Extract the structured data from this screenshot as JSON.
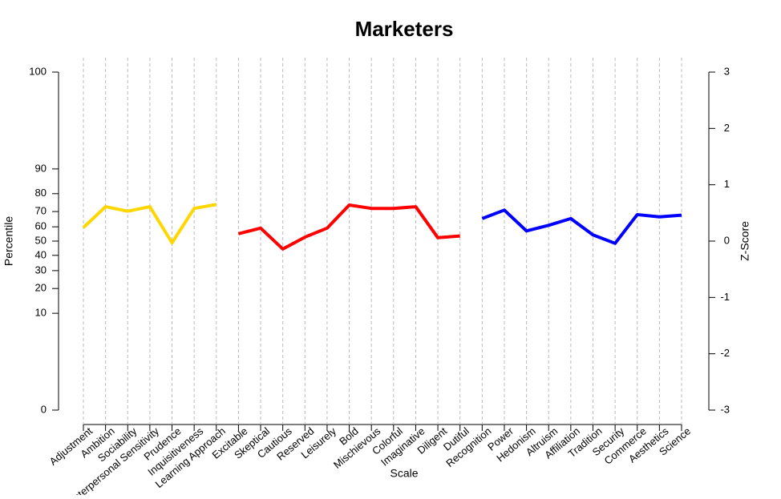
{
  "chart_data": {
    "type": "line",
    "title": "Marketers",
    "xlabel": "Scale",
    "ylabel": "Percentile",
    "y2label": "Z-Score",
    "categories": [
      "Adjustment",
      "Ambition",
      "Sociability",
      "Interpersonal Sensitivity",
      "Prudence",
      "Inquisitiveness",
      "Learning Approach",
      "Excitable",
      "Skeptical",
      "Cautious",
      "Reserved",
      "Leisurely",
      "Bold",
      "Mischievous",
      "Colorful",
      "Imaginative",
      "Diligent",
      "Dutiful",
      "Recognition",
      "Power",
      "Hedonism",
      "Altruism",
      "Affiliation",
      "Tradition",
      "Security",
      "Commerce",
      "Aesthetics",
      "Science"
    ],
    "series": [
      {
        "color": "#ffd700",
        "axis": "y2",
        "values": [
          0.24,
          0.61,
          0.53,
          0.61,
          -0.03,
          0.58,
          0.65,
          null,
          null,
          null,
          null,
          null,
          null,
          null,
          null,
          null,
          null,
          null,
          null,
          null,
          null,
          null,
          null,
          null,
          null,
          null,
          null,
          null
        ]
      },
      {
        "color": "#ff0000",
        "axis": "y2",
        "values": [
          null,
          null,
          null,
          null,
          null,
          null,
          null,
          0.13,
          0.23,
          -0.14,
          0.07,
          0.23,
          0.64,
          0.58,
          0.58,
          0.61,
          0.06,
          0.09,
          null,
          null,
          null,
          null,
          null,
          null,
          null,
          null,
          null,
          null
        ]
      },
      {
        "color": "#0000ff",
        "axis": "y2",
        "values": [
          null,
          null,
          null,
          null,
          null,
          null,
          null,
          null,
          null,
          null,
          null,
          null,
          null,
          null,
          null,
          null,
          null,
          null,
          0.4,
          0.55,
          0.18,
          0.28,
          0.4,
          0.11,
          -0.04,
          0.47,
          0.43,
          0.46
        ]
      }
    ],
    "yscale": "probit",
    "ylim": [
      0,
      100
    ],
    "yticks": [
      0,
      10,
      20,
      30,
      40,
      50,
      60,
      70,
      80,
      90,
      100
    ],
    "y2lim": [
      -3,
      3
    ],
    "y2ticks": [
      -3,
      -2,
      -1,
      0,
      1,
      2,
      3
    ],
    "grid": "x"
  }
}
